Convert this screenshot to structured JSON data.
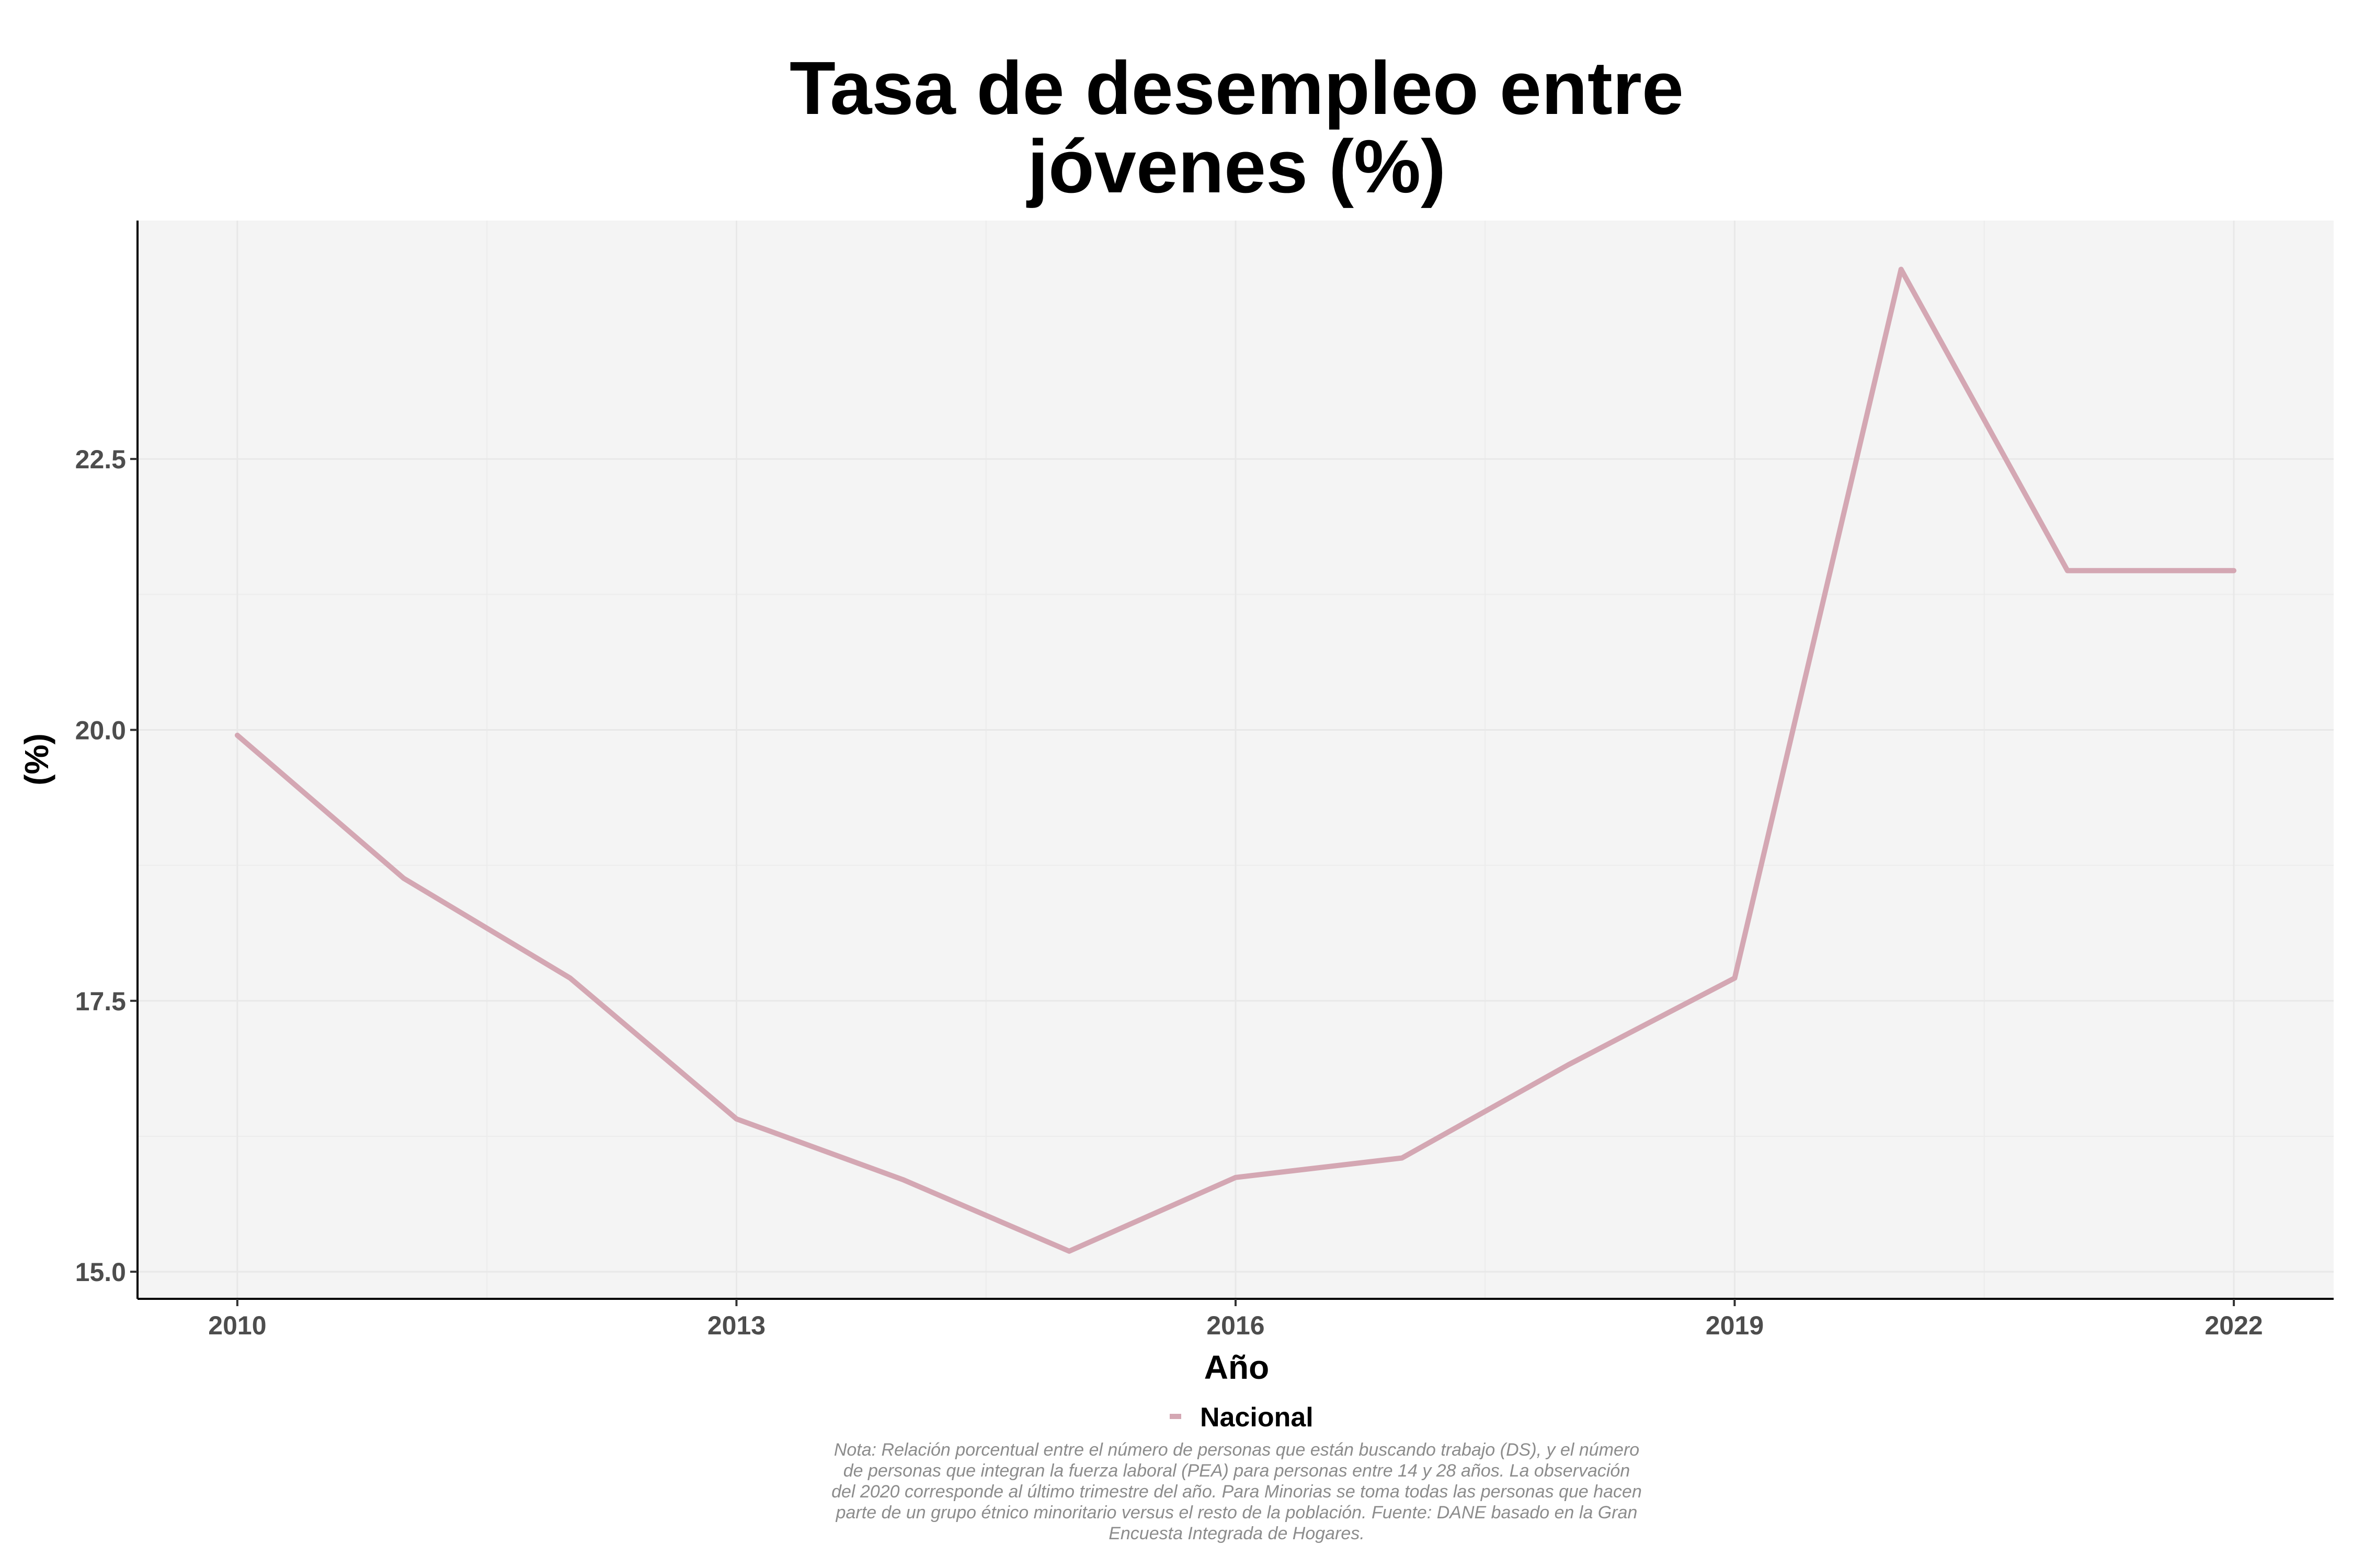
{
  "chart_data": {
    "type": "line",
    "title": [
      "Tasa de desempleo entre",
      "jóvenes (%)"
    ],
    "xlabel": "Año",
    "ylabel": "(%)",
    "x": [
      2010,
      2011,
      2012,
      2013,
      2014,
      2015,
      2016,
      2017,
      2018,
      2019,
      2020,
      2021,
      2022
    ],
    "x_ticks": [
      "2010",
      "2013",
      "2016",
      "2019",
      "2022"
    ],
    "y_ticks": [
      "15.0",
      "17.5",
      "20.0",
      "22.5"
    ],
    "xlim": [
      2009.4,
      2022.6
    ],
    "ylim": [
      14.75,
      24.7
    ],
    "series": [
      {
        "name": "Nacional",
        "color": "#d4a7b3",
        "values": [
          19.95,
          18.63,
          17.71,
          16.41,
          15.85,
          15.19,
          15.87,
          16.05,
          16.91,
          17.71,
          24.25,
          21.47,
          21.47
        ]
      }
    ],
    "legend_position": "bottom",
    "grid": true,
    "panel_background": "#f4f4f4",
    "caption": [
      "Nota: Relación porcentual entre el número de personas que están buscando trabajo (DS), y el número",
      "de personas que integran la fuerza laboral (PEA) para personas entre 14 y 28 años. La observación",
      "del 2020 corresponde al último trimestre del año. Para Minorias se toma todas las personas que hacen",
      "parte de un grupo étnico minoritario versus el resto de la población. Fuente: DANE basado en la Gran",
      "Encuesta Integrada de Hogares."
    ]
  }
}
